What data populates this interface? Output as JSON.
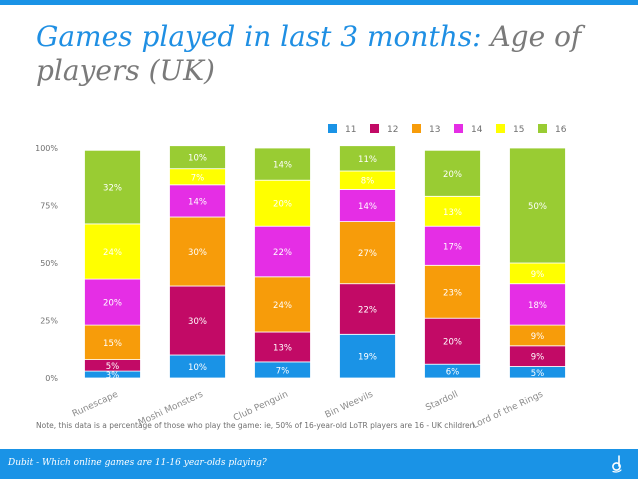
{
  "slide": {
    "title_main": "Games played in last 3 months:",
    "title_sub": "Age of players (UK)",
    "note": "Note, this data is a percentage of those who play the game: ie, 50% of 16-year-old LoTR players are 16 - UK children",
    "footer": "Dubit - Which online games are 11-16 year-olds playing?",
    "accent_color": "#1a93e6",
    "logo_icon": "dubit-logo-icon"
  },
  "chart_data": {
    "type": "bar",
    "stacked": true,
    "categories": [
      "Runescape",
      "Moshi Monsters",
      "Club Penguin",
      "Bin Weevils",
      "Stardoll",
      "Lord of the Rings"
    ],
    "series": [
      {
        "name": "11",
        "color": "#1a93e6",
        "values": [
          3,
          10,
          7,
          19,
          6,
          5
        ],
        "labels": [
          "3%",
          "10%",
          "7%",
          "19%",
          "6%",
          "5%"
        ]
      },
      {
        "name": "12",
        "color": "#c20a66",
        "values": [
          5,
          30,
          13,
          22,
          20,
          9
        ],
        "labels": [
          "5%",
          "30%",
          "13%",
          "22%",
          "20%",
          "9%"
        ]
      },
      {
        "name": "13",
        "color": "#f79c0a",
        "values": [
          15,
          30,
          24,
          27,
          23,
          9
        ],
        "labels": [
          "15%",
          "30%",
          "24%",
          "27%",
          "23%",
          "9%"
        ]
      },
      {
        "name": "14",
        "color": "#e52ee5",
        "values": [
          20,
          14,
          22,
          14,
          17,
          18
        ],
        "labels": [
          "20%",
          "14%",
          "22%",
          "14%",
          "17%",
          "18%"
        ]
      },
      {
        "name": "15",
        "color": "#ffff00",
        "values": [
          24,
          7,
          20,
          8,
          13,
          9
        ],
        "labels": [
          "24%",
          "7%",
          "20%",
          "8%",
          "13%",
          "9%"
        ]
      },
      {
        "name": "16",
        "color": "#99cc33",
        "values": [
          32,
          10,
          14,
          11,
          20,
          50
        ],
        "labels": [
          "32%",
          "10%",
          "14%",
          "11%",
          "20%",
          "50%"
        ]
      }
    ],
    "yticks": [
      "0%",
      "25%",
      "50%",
      "75%",
      "100%"
    ],
    "ylim": [
      0,
      100
    ],
    "grid": false,
    "legend_position": "top-right"
  }
}
